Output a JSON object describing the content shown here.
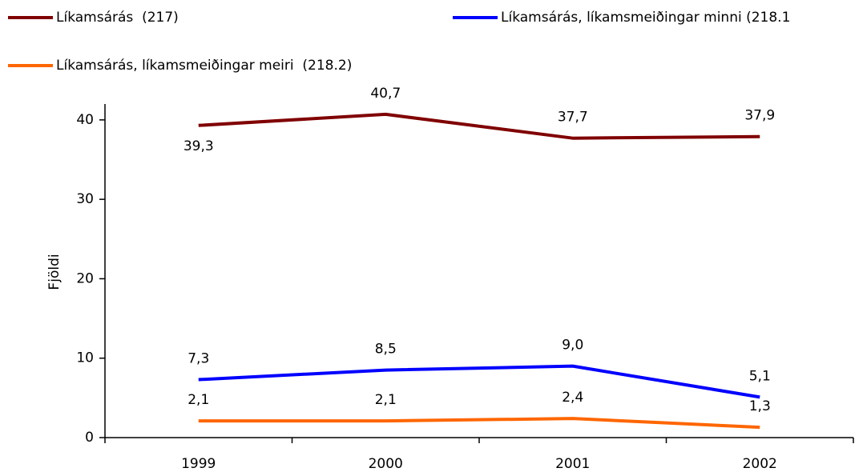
{
  "chart_data": {
    "type": "line",
    "y_label": "Fjöldi",
    "categories": [
      "1999",
      "2000",
      "2001",
      "2002"
    ],
    "series": [
      {
        "name": "Líkamsárás  (217)",
        "color": "#800000",
        "values": [
          39.3,
          40.7,
          37.7,
          37.9
        ],
        "value_labels": [
          "39,3",
          "40,7",
          "37,7",
          "37,9"
        ]
      },
      {
        "name": "Líkamsárás, líkamsmeiðingar minni (218.1",
        "color": "#0000ff",
        "values": [
          7.3,
          8.5,
          9.0,
          5.1
        ],
        "value_labels": [
          "7,3",
          "8,5",
          "9,0",
          "5,1"
        ]
      },
      {
        "name": "Líkamsárás, líkamsmeiðingar meiri  (218.2)",
        "color": "#ff6600",
        "values": [
          2.1,
          2.1,
          2.4,
          1.3
        ],
        "value_labels": [
          "2,1",
          "2,1",
          "2,4",
          "1,3"
        ]
      }
    ],
    "ylim": [
      0,
      42
    ],
    "yticks": [
      0,
      10,
      20,
      30,
      40
    ]
  }
}
